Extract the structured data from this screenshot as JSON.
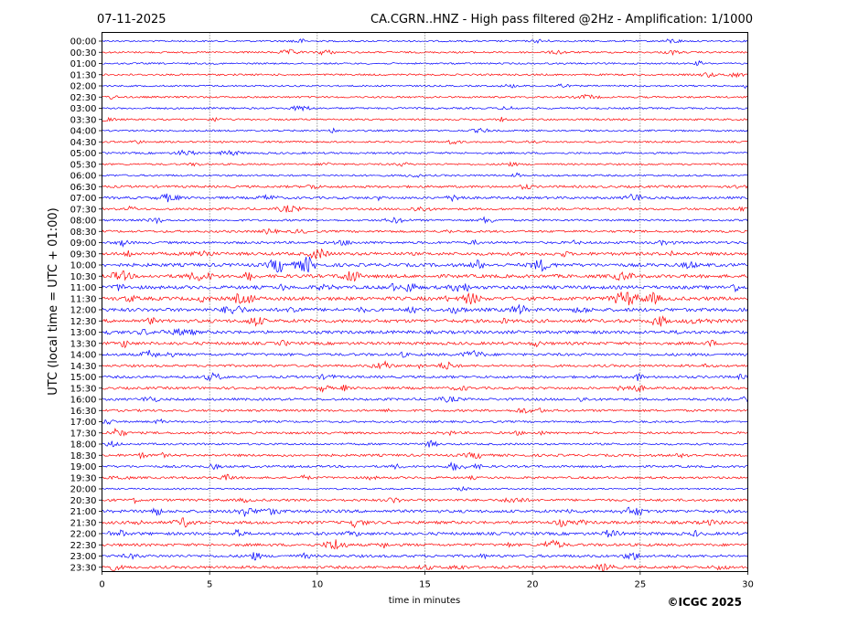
{
  "header": {
    "date": "07-11-2025",
    "title": "CA.CGRN..HNZ - High pass filtered @2Hz - Amplification: 1/1000"
  },
  "footer": {
    "copyright": "©ICGC 2025"
  },
  "colors": {
    "series_a": "#0000ff",
    "series_b": "#ff0000",
    "axis": "#000000"
  },
  "chart_data": {
    "type": "line",
    "title": "CA.CGRN..HNZ - High pass filtered @2Hz - Amplification: 1/1000",
    "xlabel": "time in minutes",
    "ylabel": "UTC (local time = UTC + 01:00)",
    "xlim": [
      0,
      30
    ],
    "x_ticks": [
      0,
      5,
      10,
      15,
      20,
      25,
      30
    ],
    "x_grid": "dotted vertical lines at each major tick",
    "y_categories": [
      "00:00",
      "00:30",
      "01:00",
      "01:30",
      "02:00",
      "02:30",
      "03:00",
      "03:30",
      "04:00",
      "04:30",
      "05:00",
      "05:30",
      "06:00",
      "06:30",
      "07:00",
      "07:30",
      "08:00",
      "08:30",
      "09:00",
      "09:30",
      "10:00",
      "10:30",
      "11:00",
      "11:30",
      "12:00",
      "12:30",
      "13:00",
      "13:30",
      "14:00",
      "14:30",
      "15:00",
      "15:30",
      "16:00",
      "16:30",
      "17:00",
      "17:30",
      "18:00",
      "18:30",
      "19:00",
      "19:30",
      "20:00",
      "20:30",
      "21:00",
      "21:30",
      "22:00",
      "22:30",
      "23:00",
      "23:30"
    ],
    "trace_colors": "alternating blue and red per trace, starting with blue at 00:00",
    "noise_level": [
      0.25,
      0.3,
      0.25,
      0.3,
      0.25,
      0.3,
      0.3,
      0.3,
      0.3,
      0.3,
      0.35,
      0.3,
      0.35,
      0.55,
      0.6,
      0.5,
      0.4,
      0.5,
      0.6,
      0.9,
      1.0,
      1.0,
      1.0,
      1.1,
      1.0,
      1.0,
      0.9,
      0.8,
      0.7,
      0.6,
      0.6,
      0.6,
      0.6,
      0.5,
      0.4,
      0.5,
      0.4,
      0.6,
      0.5,
      0.5,
      0.2,
      0.6,
      0.8,
      0.8,
      0.8,
      0.7,
      0.7,
      0.7
    ]
  }
}
